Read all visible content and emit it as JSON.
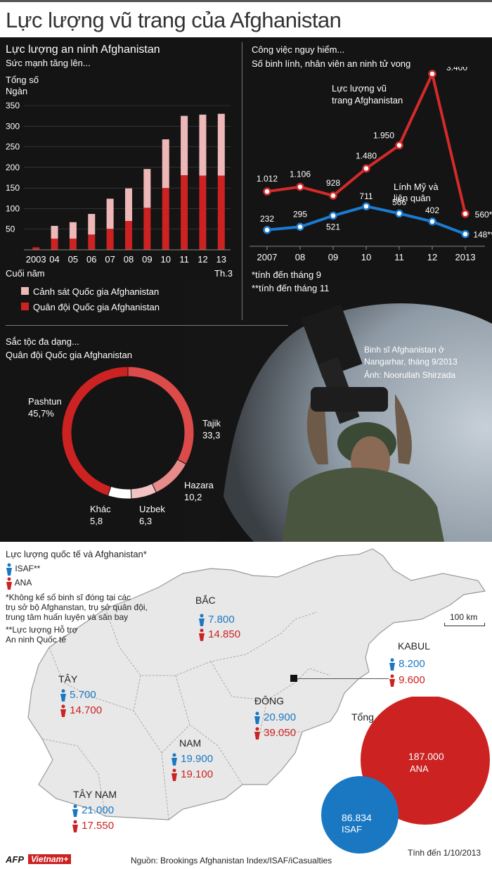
{
  "title": "Lực lượng vũ trang của Afghanistan",
  "colors": {
    "police": "#eeb8b8",
    "army": "#cc2222",
    "afghan_line": "#d42a2a",
    "us_line": "#1a7bd0",
    "isaf": "#1a78c2",
    "ana": "#cc2222"
  },
  "bar_panel": {
    "title": "Lực lượng an ninh Afghanistan",
    "subtitle": "Sức mạnh tăng lên...",
    "ylabel1": "Tổng số",
    "ylabel2": "Ngàn",
    "xlabel": "Cuối năm",
    "last_sub": "Th.3",
    "legend_police": "Cảnh sát Quốc gia Afghanistan",
    "legend_army": "Quân đội Quốc gia Afghanistan"
  },
  "line_panel": {
    "title": "Công việc nguy hiểm...",
    "subtitle": "Số binh lính, nhân viên an ninh tử vong",
    "afghan_label1": "Lực lượng vũ",
    "afghan_label2": "trang Afghanistan",
    "us_label1": "Lính Mỹ và",
    "us_label2": "liên quân",
    "note1": "*tính đến tháng 9",
    "note2": "**tính đến tháng 11"
  },
  "donut_panel": {
    "title": "Sắc tộc đa dạng...",
    "subtitle": "Quân đội Quốc gia Afghanistan"
  },
  "photo_caption": {
    "line1": "Binh sĩ Afghanistan ở",
    "line2": "Nangarhar,  tháng 9/2013",
    "line3": "Ảnh: Noorullah Shirzada"
  },
  "map_panel": {
    "title": "Lực lượng quốc tế và Afghanistan*",
    "legend_isaf": "ISAF**",
    "legend_ana": "ANA",
    "note1_1": "*Không kể số binh sĩ đóng tại các",
    "note1_2": "trụ sở bộ Afghanstan, trụ sở quân đội,",
    "note1_3": "trung tâm huấn luyện và sân bay",
    "note2_1": "**Lực lượng Hỗ trợ",
    "note2_2": "An ninh Quốc tế",
    "scale": "100 km",
    "total_label": "Tổng",
    "as_of": "Tính đến 1/10/2013",
    "regions": [
      {
        "name": "BẮC",
        "isaf": "7.800",
        "ana": "14.850"
      },
      {
        "name": "KABUL",
        "isaf": "8.200",
        "ana": "9.600"
      },
      {
        "name": "TÂY",
        "isaf": "5.700",
        "ana": "14.700"
      },
      {
        "name": "ĐÔNG",
        "isaf": "20.900",
        "ana": "39.050"
      },
      {
        "name": "NAM",
        "isaf": "19.900",
        "ana": "19.100"
      },
      {
        "name": "TÂY NAM",
        "isaf": "21.000",
        "ana": "17.550"
      }
    ],
    "total_ana_value": "187.000",
    "total_ana_label": "ANA",
    "total_isaf_value": "86.834",
    "total_isaf_label": "ISAF"
  },
  "footer": {
    "afp": "AFP",
    "vietnam": "Vietnam+",
    "source": "Nguồn: Brookings Afghanistan Index/ISAF/iCasualties"
  },
  "chart_data": [
    {
      "type": "bar",
      "title": "Lực lượng an ninh Afghanistan",
      "ylabel": "Tổng số Ngàn",
      "xlabel": "Cuối năm",
      "categories": [
        "2003",
        "04",
        "05",
        "06",
        "07",
        "08",
        "09",
        "10",
        "11",
        "12",
        "13"
      ],
      "ylim": [
        0,
        350
      ],
      "yticks": [
        50,
        100,
        150,
        200,
        250,
        300,
        350
      ],
      "series": [
        {
          "name": "Quân đội Quốc gia Afghanistan",
          "values": [
            6,
            27,
            27,
            37,
            51,
            70,
            102,
            150,
            181,
            180,
            180
          ]
        },
        {
          "name": "Cảnh sát Quốc gia Afghanistan",
          "values": [
            0,
            31,
            40,
            50,
            73,
            79,
            94,
            118,
            144,
            148,
            150
          ]
        }
      ],
      "stacked": true
    },
    {
      "type": "line",
      "title": "Công việc nguy hiểm...",
      "categories": [
        "2007",
        "08",
        "09",
        "10",
        "11",
        "12",
        "2013"
      ],
      "series": [
        {
          "name": "Lực lượng vũ trang Afghanistan",
          "values": [
            1012,
            1106,
            928,
            1480,
            1950,
            3400,
            560
          ],
          "labels": [
            "1.012",
            "1.106",
            "928",
            "1.480",
            "1.950",
            "3.400",
            "560*"
          ]
        },
        {
          "name": "Lính Mỹ và liên quân",
          "values": [
            232,
            295,
            521,
            711,
            566,
            402,
            148
          ],
          "labels": [
            "232",
            "295",
            "521",
            "711",
            "566",
            "402",
            "148**"
          ]
        }
      ]
    },
    {
      "type": "pie",
      "title": "Sắc tộc đa dạng...",
      "labels": [
        "Pashtun",
        "Tajik",
        "Hazara",
        "Uzbek",
        "Khác"
      ],
      "values": [
        45.7,
        33.3,
        10.2,
        6.3,
        5.8
      ],
      "value_labels": [
        "45,7%",
        "33,3",
        "10,2",
        "6,3",
        "5,8"
      ],
      "colors": [
        "#cc2222",
        "#dd4a4a",
        "#e98a8a",
        "#f3c3c3",
        "#ffffff"
      ]
    }
  ]
}
